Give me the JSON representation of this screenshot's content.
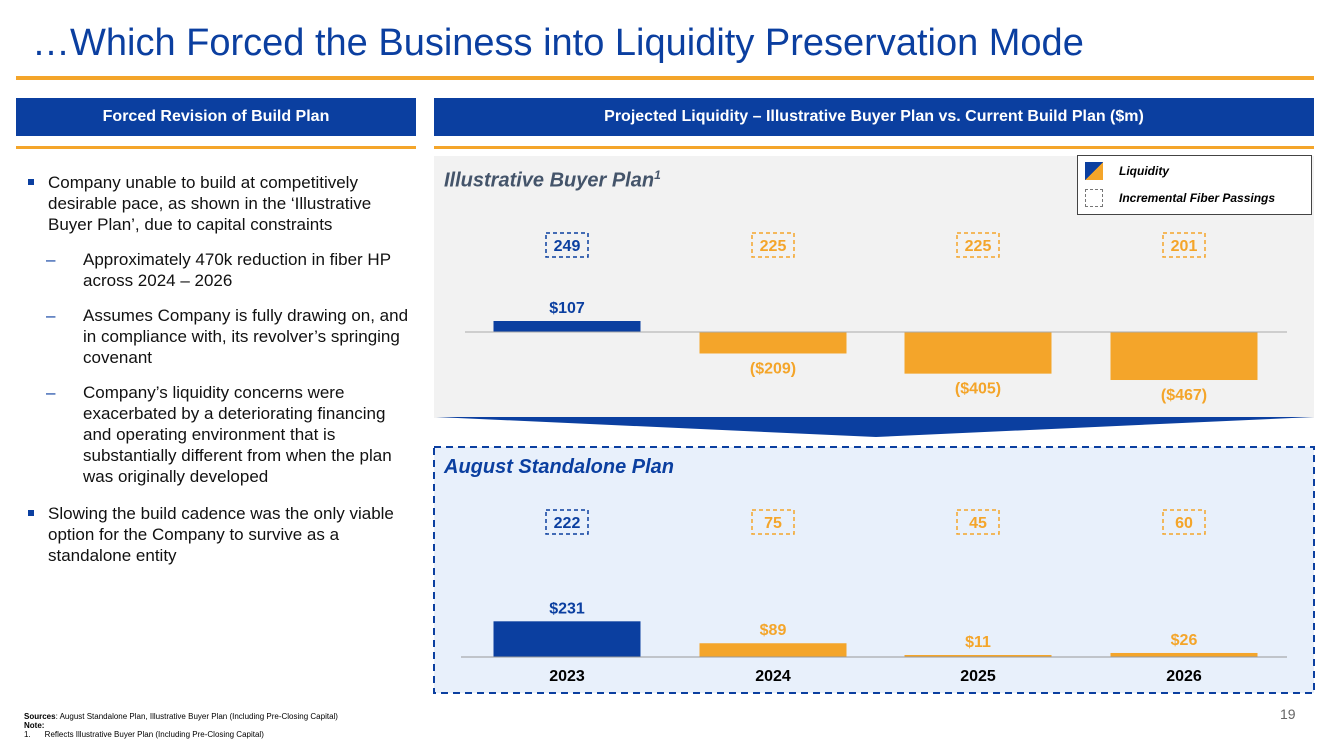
{
  "title": "…Which Forced the Business into Liquidity Preservation Mode",
  "left_panel": {
    "header": "Forced Revision of Build Plan",
    "bullets": [
      "Company unable to build at competitively desirable pace, as shown in the ‘Illustrative Buyer Plan’, due to capital constraints",
      "Slowing the build cadence was the only viable option for the Company to survive as a standalone entity"
    ],
    "sub_bullets": [
      "Approximately 470k reduction in fiber HP across 2024 – 2026",
      "Assumes Company is fully drawing on, and in compliance with, its revolver’s springing covenant",
      "Company’s liquidity concerns were exacerbated by a deteriorating financing and operating environment that is substantially different from when the plan was originally developed"
    ],
    "dash": "–"
  },
  "right_panel": {
    "header": "Projected Liquidity – Illustrative Buyer Plan vs. Current Build Plan ($m)"
  },
  "legend": {
    "liquidity": "Liquidity",
    "fiber": "Incremental Fiber Passings"
  },
  "colors": {
    "blue": "#0b3fa0",
    "orange": "#f4a52a",
    "panel_bg": "#e8f0fb"
  },
  "chart_data": [
    {
      "type": "bar",
      "title": "Illustrative Buyer Plan",
      "title_superscript": "1",
      "categories": [
        "2023",
        "2024",
        "2025",
        "2026"
      ],
      "series": [
        {
          "name": "Liquidity",
          "values": [
            107,
            -209,
            -405,
            -467
          ],
          "labels": [
            "$107",
            "($209)",
            "($405)",
            "($467)"
          ]
        },
        {
          "name": "Incremental Fiber Passings",
          "values": [
            249,
            225,
            225,
            201
          ],
          "labels": [
            "249",
            "225",
            "225",
            "201"
          ]
        }
      ],
      "ylabel": "$m"
    },
    {
      "type": "bar",
      "title": "August Standalone Plan",
      "categories": [
        "2023",
        "2024",
        "2025",
        "2026"
      ],
      "series": [
        {
          "name": "Liquidity",
          "values": [
            231,
            89,
            11,
            26
          ],
          "labels": [
            "$231",
            "$89",
            "$11",
            "$26"
          ]
        },
        {
          "name": "Incremental Fiber Passings",
          "values": [
            222,
            75,
            45,
            60
          ],
          "labels": [
            "222",
            "75",
            "45",
            "60"
          ]
        }
      ],
      "ylabel": "$m"
    }
  ],
  "footnotes": {
    "sources_label": "Sources",
    "sources_text": ": August Standalone Plan, Illustrative Buyer Plan (Including Pre-Closing Capital)",
    "note_label": "Note:",
    "note_num": "1.",
    "note_text": "Reflects Illustrative Buyer Plan (Including Pre-Closing Capital)"
  },
  "page_number": "19"
}
